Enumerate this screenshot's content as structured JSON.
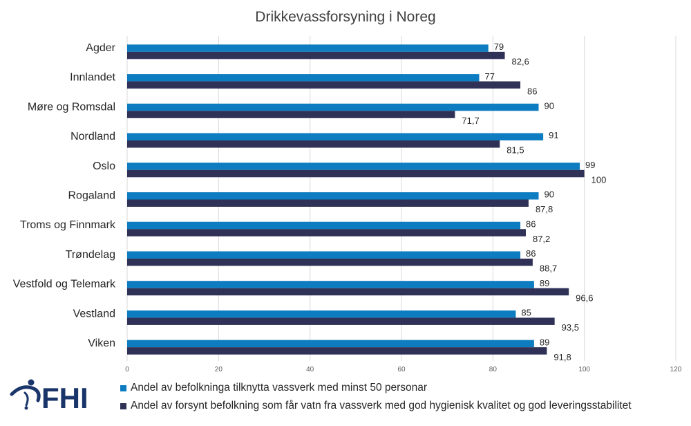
{
  "colors": {
    "series0": "#0e7cc0",
    "series1": "#2f3256",
    "grid": "#d9d9d9",
    "logo": "#1a3569"
  },
  "logo": {
    "text": "FHI"
  },
  "chart_data": {
    "type": "bar",
    "orientation": "horizontal",
    "title": "Drikkevassforsyning i Noreg",
    "categories": [
      "Agder",
      "Innlandet",
      "Møre og Romsdal",
      "Nordland",
      "Oslo",
      "Rogaland",
      "Troms og Finnmark",
      "Trøndelag",
      "Vestfold og Telemark",
      "Vestland",
      "Viken"
    ],
    "series": [
      {
        "name": "Andel av befolkninga tilknytta vassverk med minst 50 personar",
        "values": [
          79,
          77,
          90,
          91,
          99,
          90,
          86,
          86,
          89,
          85,
          89
        ],
        "labels": [
          "79",
          "77",
          "90",
          "91",
          "99",
          "90",
          "86",
          "86",
          "89",
          "85",
          "89"
        ]
      },
      {
        "name": "Andel av forsynt befolkning som får vatn fra vassverk med god hygienisk kvalitet og god leveringsstabilitet",
        "values": [
          82.6,
          86,
          71.7,
          81.5,
          100,
          87.8,
          87.2,
          88.7,
          96.6,
          93.5,
          91.8
        ],
        "labels": [
          "82,6",
          "86",
          "71,7",
          "81,5",
          "100",
          "87,8",
          "87,2",
          "88,7",
          "96,6",
          "93,5",
          "91,8"
        ]
      }
    ],
    "xlim": [
      0,
      120
    ],
    "xticks": [
      "0",
      "20",
      "40",
      "60",
      "80",
      "100",
      "120"
    ],
    "grid": true,
    "legend": "bottom"
  }
}
